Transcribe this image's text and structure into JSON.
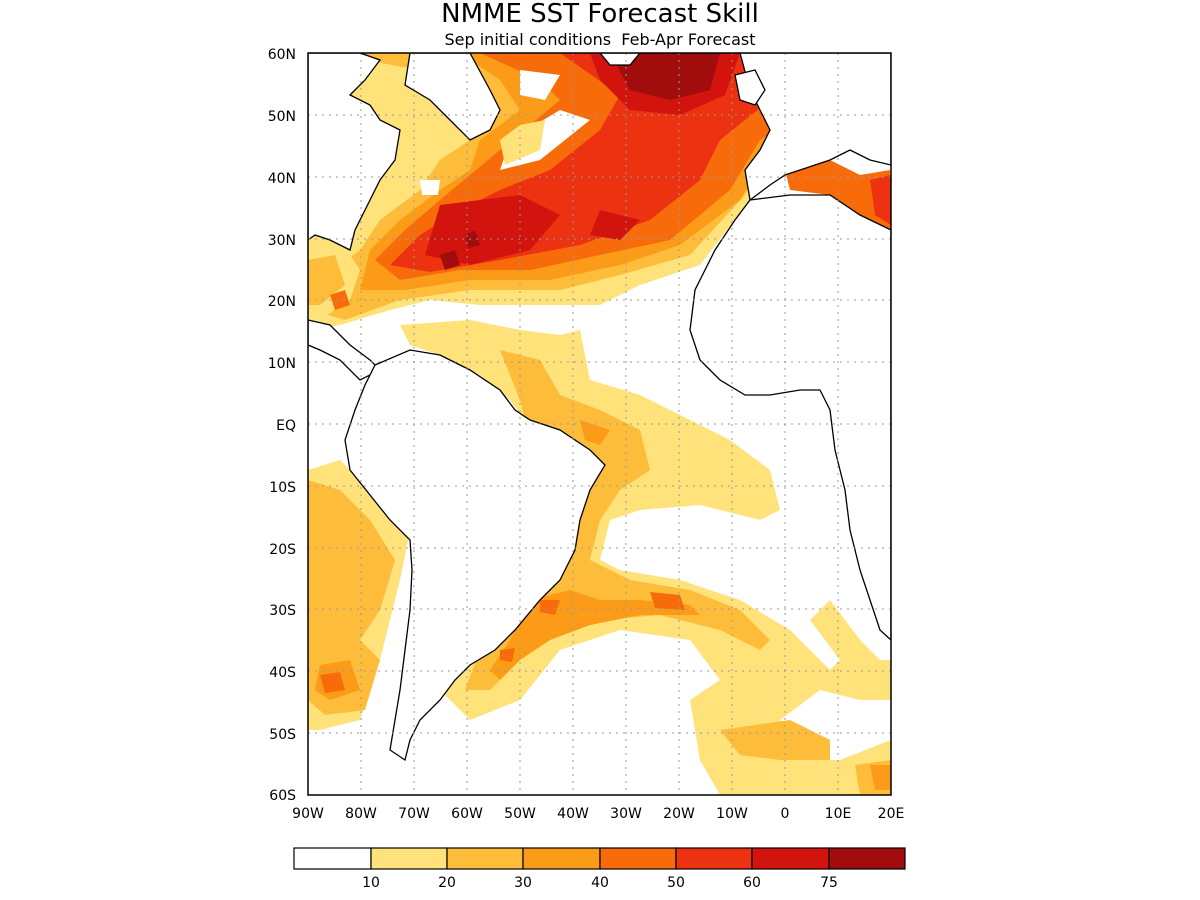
{
  "title": "NMME SST Forecast Skill",
  "subtitle": "Sep initial conditions  Feb-Apr Forecast",
  "y_ticks": [
    "60N",
    "50N",
    "40N",
    "30N",
    "20N",
    "10N",
    "EQ",
    "10S",
    "20S",
    "30S",
    "40S",
    "50S",
    "60S"
  ],
  "x_ticks": [
    "90W",
    "80W",
    "70W",
    "60W",
    "50W",
    "40W",
    "30W",
    "20W",
    "10W",
    "0",
    "10E",
    "20E"
  ],
  "colorbar": {
    "colors": [
      "#ffffff",
      "#ffe27a",
      "#fdbd3a",
      "#fb9b17",
      "#f86b0b",
      "#ec3210",
      "#d2130e",
      "#a00d0c"
    ],
    "labels": [
      "10",
      "20",
      "30",
      "40",
      "50",
      "60",
      "75"
    ]
  },
  "colors": {
    "land": "#ffffff",
    "coast": "#000000",
    "grid": "#9a9a9a"
  }
}
